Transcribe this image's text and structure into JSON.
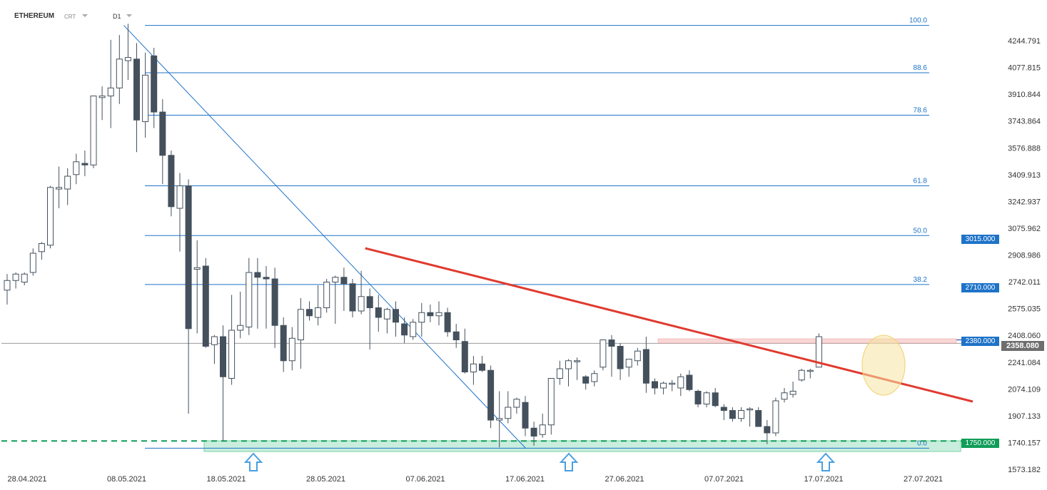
{
  "header": {
    "symbol": "ETHEREUM",
    "source": "CRT",
    "timeframe": "D1"
  },
  "price_tags": {
    "level_3015": "3015.000",
    "level_2710": "2710.000",
    "level_2380": "2380.000",
    "level_1750": "1750.000",
    "current": "2358.080"
  },
  "colors": {
    "bull_body": "#ffffff",
    "bear_body": "#44515d",
    "wick": "#44515d",
    "fib_line": "#1e73c8",
    "trend_line": "#e03a2f",
    "support_line": "#0f9d58",
    "support_zone": "#c9eedd",
    "highlight": "#f5e3a3",
    "arrow": "#4a9fe0"
  },
  "chart_data": {
    "type": "candlestick",
    "timeframe": "D1",
    "yticks": [
      "4244.791",
      "4077.815",
      "3910.844",
      "3743.864",
      "3576.888",
      "3409.913",
      "3242.937",
      "3075.962",
      "2908.986",
      "2742.011",
      "2575.035",
      "2408.060",
      "2241.084",
      "2074.109",
      "1907.133",
      "1740.157",
      "1573.182"
    ],
    "xticks": [
      "28.04.2021",
      "08.05.2021",
      "18.05.2021",
      "28.05.2021",
      "07.06.2021",
      "17.06.2021",
      "27.06.2021",
      "07.07.2021",
      "17.07.2021",
      "27.07.2021"
    ],
    "fib_levels": [
      {
        "label": "100.0",
        "price": 4340
      },
      {
        "label": "88.6",
        "price": 4045
      },
      {
        "label": "78.6",
        "price": 3780
      },
      {
        "label": "61.8",
        "price": 3340
      },
      {
        "label": "50.0",
        "price": 3030
      },
      {
        "label": "38.2",
        "price": 2725
      },
      {
        "label": "0.0",
        "price": 1705
      }
    ],
    "horizontal_levels": [
      3015,
      2710,
      2380,
      1750
    ],
    "current_price": 2358.08,
    "candles": [
      [
        2690,
        2790,
        2600,
        2750
      ],
      [
        2750,
        2800,
        2700,
        2790
      ],
      [
        2740,
        2800,
        2720,
        2790
      ],
      [
        2800,
        2950,
        2780,
        2920
      ],
      [
        2930,
        2990,
        2880,
        2980
      ],
      [
        2970,
        3340,
        2950,
        3330
      ],
      [
        3320,
        3460,
        3200,
        3330
      ],
      [
        3320,
        3450,
        3220,
        3400
      ],
      [
        3410,
        3540,
        3350,
        3490
      ],
      [
        3480,
        3560,
        3400,
        3470
      ],
      [
        3470,
        3900,
        3450,
        3900
      ],
      [
        3890,
        3960,
        3750,
        3900
      ],
      [
        3900,
        4250,
        3700,
        3950
      ],
      [
        3950,
        4280,
        3850,
        4130
      ],
      [
        4120,
        4350,
        4000,
        4140
      ],
      [
        4130,
        4230,
        3550,
        3750
      ],
      [
        3740,
        4170,
        3640,
        4030
      ],
      [
        4150,
        4200,
        3700,
        3800
      ],
      [
        3800,
        3880,
        3350,
        3530
      ],
      [
        3530,
        3560,
        3150,
        3210
      ],
      [
        3200,
        3420,
        2930,
        3340
      ],
      [
        3340,
        3380,
        1920,
        2450
      ],
      [
        2820,
        3000,
        2420,
        2830
      ],
      [
        2840,
        2890,
        2330,
        2340
      ],
      [
        2350,
        2410,
        2230,
        2400
      ],
      [
        2400,
        2470,
        1750,
        2150
      ],
      [
        2140,
        2660,
        2100,
        2440
      ],
      [
        2440,
        2680,
        2390,
        2470
      ],
      [
        2460,
        2890,
        2410,
        2800
      ],
      [
        2800,
        2890,
        2450,
        2770
      ],
      [
        2770,
        2840,
        2450,
        2760
      ],
      [
        2760,
        2830,
        2330,
        2470
      ],
      [
        2470,
        2520,
        2180,
        2250
      ],
      [
        2250,
        2460,
        2190,
        2390
      ],
      [
        2380,
        2640,
        2200,
        2570
      ],
      [
        2570,
        2620,
        2500,
        2530
      ],
      [
        2520,
        2720,
        2470,
        2580
      ],
      [
        2580,
        2760,
        2550,
        2740
      ],
      [
        2740,
        2780,
        2480,
        2770
      ],
      [
        2770,
        2830,
        2560,
        2730
      ],
      [
        2730,
        2760,
        2520,
        2560
      ],
      [
        2560,
        2810,
        2540,
        2650
      ],
      [
        2650,
        2700,
        2320,
        2580
      ],
      [
        2580,
        2660,
        2430,
        2520
      ],
      [
        2510,
        2580,
        2420,
        2570
      ],
      [
        2570,
        2620,
        2400,
        2490
      ],
      [
        2480,
        2520,
        2360,
        2410
      ],
      [
        2400,
        2510,
        2380,
        2490
      ],
      [
        2490,
        2610,
        2400,
        2550
      ],
      [
        2550,
        2600,
        2490,
        2530
      ],
      [
        2530,
        2620,
        2470,
        2550
      ],
      [
        2550,
        2580,
        2400,
        2430
      ],
      [
        2430,
        2480,
        2330,
        2380
      ],
      [
        2370,
        2450,
        2170,
        2180
      ],
      [
        2180,
        2280,
        2100,
        2230
      ],
      [
        2230,
        2280,
        2180,
        2190
      ],
      [
        2190,
        2220,
        1830,
        1880
      ],
      [
        1880,
        2060,
        1710,
        1890
      ],
      [
        1890,
        2060,
        1860,
        1960
      ],
      [
        1960,
        2020,
        1920,
        2010
      ],
      [
        1990,
        2030,
        1780,
        1830
      ],
      [
        1830,
        1870,
        1720,
        1780
      ],
      [
        1790,
        1920,
        1770,
        1850
      ],
      [
        1850,
        2140,
        1790,
        2140
      ],
      [
        2140,
        2250,
        2100,
        2200
      ],
      [
        2200,
        2260,
        2090,
        2250
      ],
      [
        2250,
        2270,
        2130,
        2250
      ],
      [
        2150,
        2160,
        2070,
        2110
      ],
      [
        2120,
        2190,
        2090,
        2170
      ],
      [
        2210,
        2380,
        2190,
        2380
      ],
      [
        2380,
        2410,
        2150,
        2340
      ],
      [
        2340,
        2360,
        2130,
        2200
      ],
      [
        2210,
        2260,
        2150,
        2260
      ],
      [
        2250,
        2330,
        2220,
        2310
      ],
      [
        2320,
        2400,
        2050,
        2110
      ],
      [
        2120,
        2140,
        2040,
        2080
      ],
      [
        2080,
        2120,
        2040,
        2110
      ],
      [
        2110,
        2130,
        2060,
        2110
      ],
      [
        2080,
        2170,
        2030,
        2150
      ],
      [
        2160,
        2190,
        2060,
        2070
      ],
      [
        2060,
        2070,
        1960,
        1980
      ],
      [
        1980,
        2060,
        1960,
        2050
      ],
      [
        2050,
        2080,
        1960,
        1970
      ],
      [
        1960,
        1980,
        1880,
        1940
      ],
      [
        1940,
        1960,
        1870,
        1890
      ],
      [
        1890,
        1960,
        1870,
        1940
      ],
      [
        1950,
        1960,
        1840,
        1950
      ],
      [
        1940,
        1960,
        1840,
        1840
      ],
      [
        1840,
        1880,
        1730,
        1800
      ],
      [
        1800,
        2020,
        1780,
        2000
      ],
      [
        2010,
        2080,
        1990,
        2050
      ],
      [
        2040,
        2120,
        2020,
        2060
      ],
      [
        2130,
        2200,
        2120,
        2190
      ],
      [
        2190,
        2200,
        2140,
        2190
      ],
      [
        2210,
        2420,
        2210,
        2400
      ]
    ],
    "trend_line": {
      "from": {
        "candle": 37,
        "price": 2880
      },
      "to": {
        "candle": 103,
        "price": 2055
      }
    },
    "down_line": {
      "from": {
        "candle": 14,
        "price": 4340
      },
      "to": {
        "candle": 55,
        "price": 1705
      }
    },
    "support_arrows": [
      25,
      57,
      88
    ]
  }
}
